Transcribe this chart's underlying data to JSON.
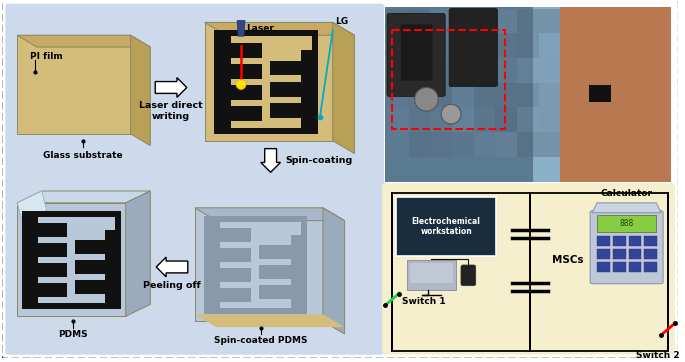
{
  "bg_outer": "#ffffff",
  "bg_left": "#cddaec",
  "bg_circuit": "#f5efcd",
  "pi_color_top": "#d4bc7a",
  "pi_color_side": "#b8a055",
  "pi_color_bottom": "#c8aa65",
  "pdms_color_top": "#b8c8d8",
  "pdms_color_side": "#9aacbc",
  "pdms_color_bottom": "#a8b8c8",
  "lg_black": "#111111",
  "labels": {
    "pi_film": "PI film",
    "glass_substrate": "Glass substrate",
    "laser": "Laser",
    "lg": "LG",
    "laser_direct_writing": "Laser direct\nwriting",
    "spin_coating": "Spin-coating",
    "peeling_off": "Peeling off",
    "pdms": "PDMS",
    "spin_coated_pdms": "Spin-coated PDMS",
    "electrochemical": "Electrochemical\nworkstation",
    "mscs": "MSCs",
    "calculator": "Calculator",
    "switch1": "Switch 1",
    "switch2": "Switch 2"
  }
}
